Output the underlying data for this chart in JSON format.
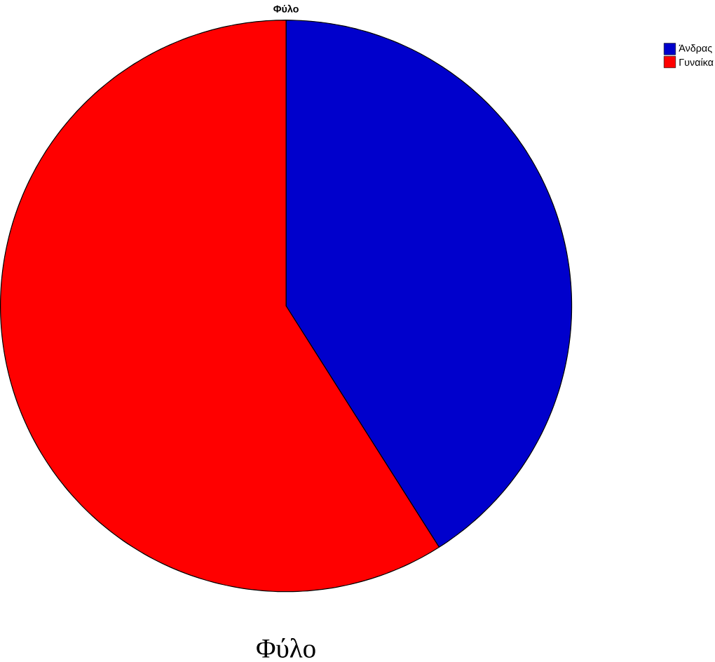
{
  "chart_data": {
    "type": "pie",
    "title": "Φύλο",
    "categories": [
      "Άνδρας",
      "Γυναίκα"
    ],
    "values": [
      41,
      59
    ],
    "colors": [
      "#0000cc",
      "#ff0000"
    ],
    "legend": "top right",
    "annotations": [
      "Φύλο"
    ]
  }
}
